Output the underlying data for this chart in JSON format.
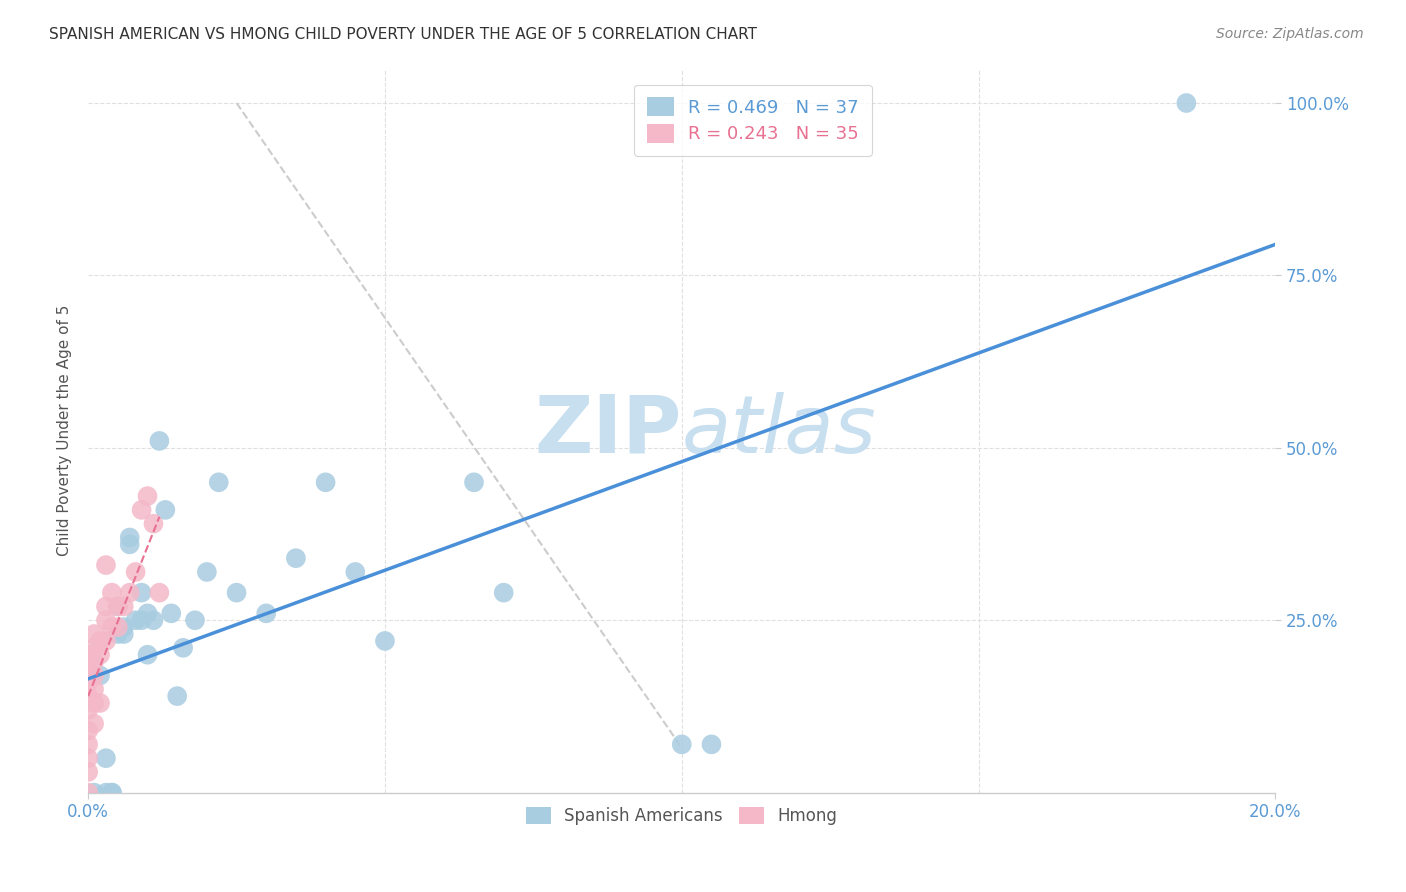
{
  "title": "SPANISH AMERICAN VS HMONG CHILD POVERTY UNDER THE AGE OF 5 CORRELATION CHART",
  "source": "Source: ZipAtlas.com",
  "ylabel": "Child Poverty Under the Age of 5",
  "xlim": [
    0.0,
    0.2
  ],
  "ylim": [
    0.0,
    1.05
  ],
  "blue_R": 0.469,
  "blue_N": 37,
  "pink_R": 0.243,
  "pink_N": 35,
  "blue_color": "#a8cce0",
  "pink_color": "#f4b8c8",
  "blue_line_color": "#4a90d9",
  "pink_line_color": "#e87090",
  "watermark_zip": "ZIP",
  "watermark_atlas": "atlas",
  "watermark_color": "#c8dff0",
  "background_color": "#ffffff",
  "blue_points_x": [
    0.001,
    0.002,
    0.003,
    0.003,
    0.004,
    0.004,
    0.005,
    0.005,
    0.006,
    0.006,
    0.007,
    0.007,
    0.008,
    0.009,
    0.009,
    0.01,
    0.01,
    0.011,
    0.012,
    0.013,
    0.014,
    0.015,
    0.016,
    0.018,
    0.02,
    0.022,
    0.025,
    0.03,
    0.035,
    0.04,
    0.045,
    0.05,
    0.065,
    0.07,
    0.1,
    0.105,
    0.185
  ],
  "blue_points_y": [
    0.0,
    0.17,
    0.05,
    0.0,
    0.0,
    0.0,
    0.23,
    0.27,
    0.24,
    0.23,
    0.36,
    0.37,
    0.25,
    0.29,
    0.25,
    0.26,
    0.2,
    0.25,
    0.51,
    0.41,
    0.26,
    0.14,
    0.21,
    0.25,
    0.32,
    0.45,
    0.29,
    0.26,
    0.34,
    0.45,
    0.32,
    0.22,
    0.45,
    0.29,
    0.07,
    0.07,
    1.0
  ],
  "pink_points_x": [
    0.0,
    0.0,
    0.0,
    0.0,
    0.0,
    0.0,
    0.0,
    0.0,
    0.0,
    0.0,
    0.001,
    0.001,
    0.001,
    0.001,
    0.001,
    0.001,
    0.001,
    0.002,
    0.002,
    0.002,
    0.003,
    0.003,
    0.003,
    0.003,
    0.004,
    0.004,
    0.005,
    0.005,
    0.006,
    0.007,
    0.008,
    0.009,
    0.01,
    0.011,
    0.012
  ],
  "pink_points_y": [
    0.0,
    0.03,
    0.05,
    0.07,
    0.09,
    0.12,
    0.14,
    0.16,
    0.18,
    0.2,
    0.1,
    0.13,
    0.15,
    0.17,
    0.19,
    0.21,
    0.23,
    0.13,
    0.2,
    0.22,
    0.22,
    0.25,
    0.27,
    0.33,
    0.24,
    0.29,
    0.24,
    0.27,
    0.27,
    0.29,
    0.32,
    0.41,
    0.43,
    0.39,
    0.29
  ],
  "blue_line_x": [
    0.0,
    0.2
  ],
  "blue_line_y": [
    0.165,
    0.795
  ],
  "pink_line_x": [
    0.0,
    0.012
  ],
  "pink_line_y": [
    0.14,
    0.4
  ],
  "diag_line_x": [
    0.025,
    0.1
  ],
  "diag_line_y": [
    1.0,
    0.065
  ],
  "grid_color": "#e0e0e0",
  "right_ytick_color": "#5b9bd5",
  "title_fontsize": 11,
  "ytick_labels": [
    "25.0%",
    "50.0%",
    "75.0%",
    "100.0%"
  ],
  "ytick_vals": [
    0.25,
    0.5,
    0.75,
    1.0
  ]
}
